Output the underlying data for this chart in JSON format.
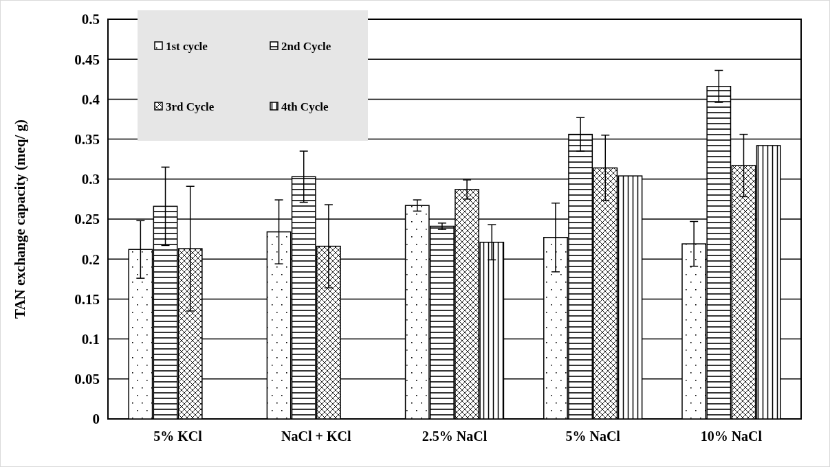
{
  "chart_data": {
    "type": "bar",
    "ylabel": "TAN exchange capacity (meq/ g)",
    "categories": [
      "5% KCl",
      "NaCl + KCl",
      "2.5% NaCl",
      "5% NaCl",
      "10% NaCl"
    ],
    "series": [
      {
        "name": "1st cycle",
        "color": "#000000",
        "values": [
          0.212,
          0.234,
          0.267,
          0.227,
          0.219
        ],
        "errors": [
          0.036,
          0.04,
          0.007,
          0.043,
          0.028
        ]
      },
      {
        "name": "2nd Cycle",
        "color": "#000000",
        "values": [
          0.266,
          0.303,
          0.241,
          0.356,
          0.416
        ],
        "errors": [
          0.049,
          0.032,
          0.004,
          0.021,
          0.02
        ]
      },
      {
        "name": "3rd Cycle",
        "color": "#000000",
        "values": [
          0.213,
          0.216,
          0.287,
          0.314,
          0.317
        ],
        "errors": [
          0.078,
          0.052,
          0.012,
          0.041,
          0.039
        ]
      },
      {
        "name": "4th Cycle",
        "color": "#000000",
        "values": [
          null,
          null,
          0.221,
          0.304,
          0.342
        ],
        "errors": [
          null,
          null,
          0.022,
          null,
          null
        ]
      }
    ],
    "ylim": [
      0,
      0.5
    ],
    "yticks": [
      0,
      0.05,
      0.1,
      0.15,
      0.2,
      0.25,
      0.3,
      0.35,
      0.4,
      0.45,
      0.5
    ],
    "grid": "y",
    "legend": "top left"
  }
}
